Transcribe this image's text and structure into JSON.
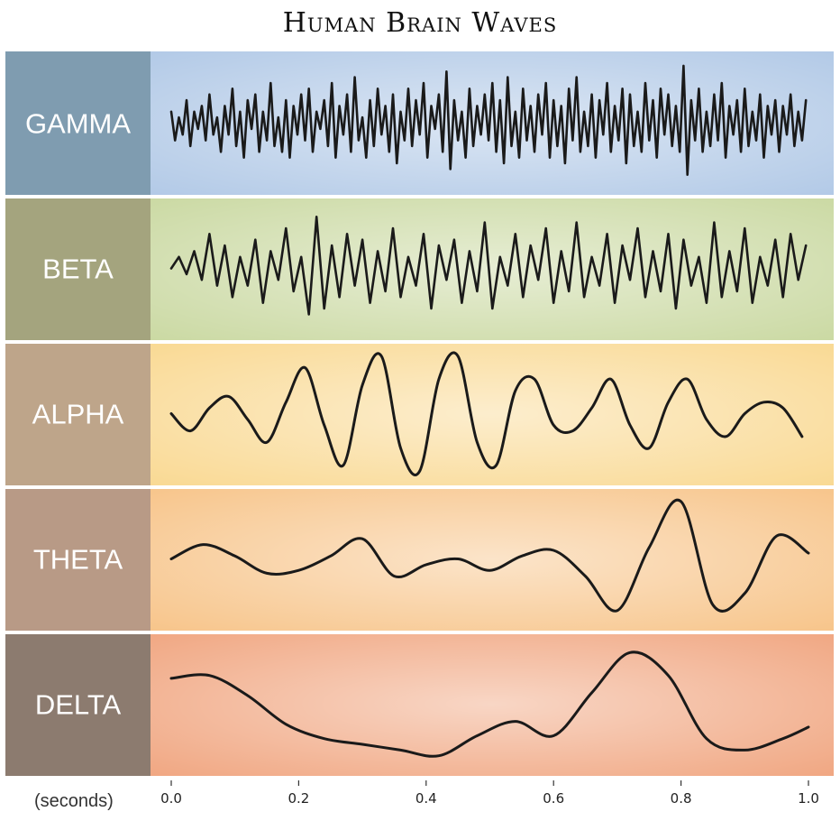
{
  "chart_data": {
    "type": "line",
    "title": "Human Brain Waves",
    "xlabel": "(seconds)",
    "ylabel": "",
    "xlim": [
      0.0,
      1.0
    ],
    "grid": false,
    "legend": "none",
    "x_ticks": [
      "0.0",
      "0.2",
      "0.4",
      "0.6",
      "0.8",
      "1.0"
    ],
    "series": [
      {
        "name": "GAMMA",
        "color": "#1a1a1a",
        "band_color": "#b0c8e6",
        "label_color": "#7f9cb0",
        "ylim": [
          -1,
          1
        ],
        "x": [
          0.0,
          0.006,
          0.012,
          0.018,
          0.024,
          0.03,
          0.036,
          0.042,
          0.048,
          0.054,
          0.06,
          0.066,
          0.072,
          0.078,
          0.084,
          0.09,
          0.096,
          0.102,
          0.108,
          0.114,
          0.12,
          0.126,
          0.132,
          0.138,
          0.144,
          0.15,
          0.156,
          0.162,
          0.168,
          0.174,
          0.18,
          0.186,
          0.192,
          0.198,
          0.204,
          0.21,
          0.216,
          0.222,
          0.228,
          0.234,
          0.24,
          0.246,
          0.252,
          0.258,
          0.264,
          0.27,
          0.276,
          0.282,
          0.288,
          0.294,
          0.3,
          0.306,
          0.312,
          0.318,
          0.324,
          0.33,
          0.336,
          0.342,
          0.348,
          0.354,
          0.36,
          0.366,
          0.372,
          0.378,
          0.384,
          0.39,
          0.396,
          0.402,
          0.408,
          0.414,
          0.42,
          0.426,
          0.432,
          0.438,
          0.444,
          0.45,
          0.456,
          0.462,
          0.468,
          0.474,
          0.48,
          0.486,
          0.492,
          0.498,
          0.504,
          0.51,
          0.516,
          0.522,
          0.528,
          0.534,
          0.54,
          0.546,
          0.552,
          0.558,
          0.564,
          0.57,
          0.576,
          0.582,
          0.588,
          0.594,
          0.6,
          0.606,
          0.612,
          0.618,
          0.624,
          0.63,
          0.636,
          0.642,
          0.648,
          0.654,
          0.66,
          0.666,
          0.672,
          0.678,
          0.684,
          0.69,
          0.696,
          0.702,
          0.708,
          0.714,
          0.72,
          0.726,
          0.732,
          0.738,
          0.744,
          0.75,
          0.756,
          0.762,
          0.768,
          0.774,
          0.78,
          0.786,
          0.792,
          0.798,
          0.804,
          0.81,
          0.816,
          0.822,
          0.828,
          0.834,
          0.84,
          0.846,
          0.852,
          0.858,
          0.864,
          0.87,
          0.876,
          0.882,
          0.888,
          0.894,
          0.9,
          0.906,
          0.912,
          0.918,
          0.924,
          0.93,
          0.936,
          0.942,
          0.948,
          0.954,
          0.96,
          0.966,
          0.972,
          0.978,
          0.984,
          0.99,
          0.996
        ],
        "values": [
          0.2,
          -0.3,
          0.1,
          -0.2,
          0.4,
          -0.4,
          0.2,
          -0.1,
          0.3,
          -0.3,
          0.5,
          -0.2,
          0.1,
          -0.5,
          0.3,
          -0.2,
          0.6,
          -0.4,
          0.2,
          -0.6,
          0.4,
          -0.1,
          0.5,
          -0.5,
          0.2,
          -0.3,
          0.7,
          -0.4,
          0.1,
          -0.5,
          0.4,
          -0.6,
          0.3,
          -0.2,
          0.5,
          -0.3,
          0.6,
          -0.5,
          0.2,
          -0.1,
          0.4,
          -0.4,
          0.7,
          -0.6,
          0.3,
          -0.2,
          0.5,
          -0.5,
          0.8,
          -0.3,
          0.1,
          -0.6,
          0.4,
          -0.4,
          0.6,
          -0.2,
          0.3,
          -0.5,
          0.5,
          -0.7,
          0.2,
          -0.3,
          0.6,
          -0.4,
          0.4,
          -0.2,
          0.7,
          -0.6,
          0.3,
          -0.1,
          0.5,
          -0.5,
          0.9,
          -0.8,
          0.4,
          -0.3,
          0.2,
          -0.6,
          0.6,
          -0.4,
          0.3,
          -0.2,
          0.5,
          -0.3,
          0.7,
          -0.5,
          0.4,
          -0.7,
          0.8,
          -0.4,
          0.2,
          -0.6,
          0.6,
          -0.3,
          0.3,
          -0.5,
          0.5,
          -0.2,
          0.7,
          -0.6,
          0.4,
          -0.4,
          0.3,
          -0.7,
          0.6,
          -0.3,
          0.8,
          -0.5,
          0.2,
          -0.4,
          0.5,
          -0.6,
          0.4,
          -0.2,
          0.7,
          -0.5,
          0.3,
          -0.3,
          0.6,
          -0.7,
          0.5,
          -0.4,
          0.2,
          -0.5,
          0.7,
          -0.3,
          0.4,
          -0.6,
          0.6,
          -0.2,
          0.5,
          -0.4,
          0.3,
          -0.5,
          1.0,
          -0.9,
          0.4,
          -0.3,
          0.6,
          -0.5,
          0.2,
          -0.4,
          0.5,
          -0.3,
          0.7,
          -0.6,
          0.3,
          -0.2,
          0.4,
          -0.5,
          0.6,
          -0.4,
          0.2,
          -0.3,
          0.5,
          -0.6,
          0.3,
          -0.2,
          0.4,
          -0.5,
          0.3,
          -0.2,
          0.5,
          -0.4,
          0.2,
          -0.3,
          0.4
        ]
      },
      {
        "name": "BETA",
        "color": "#1a1a1a",
        "band_color": "#c9d8a0",
        "label_color": "#a4a47e",
        "ylim": [
          -1,
          1
        ],
        "x": [
          0.0,
          0.012,
          0.024,
          0.036,
          0.048,
          0.06,
          0.072,
          0.084,
          0.096,
          0.108,
          0.12,
          0.132,
          0.144,
          0.156,
          0.168,
          0.18,
          0.192,
          0.204,
          0.216,
          0.228,
          0.24,
          0.252,
          0.264,
          0.276,
          0.288,
          0.3,
          0.312,
          0.324,
          0.336,
          0.348,
          0.36,
          0.372,
          0.384,
          0.396,
          0.408,
          0.42,
          0.432,
          0.444,
          0.456,
          0.468,
          0.48,
          0.492,
          0.504,
          0.516,
          0.528,
          0.54,
          0.552,
          0.564,
          0.576,
          0.588,
          0.6,
          0.612,
          0.624,
          0.636,
          0.648,
          0.66,
          0.672,
          0.684,
          0.696,
          0.708,
          0.72,
          0.732,
          0.744,
          0.756,
          0.768,
          0.78,
          0.792,
          0.804,
          0.816,
          0.828,
          0.84,
          0.852,
          0.864,
          0.876,
          0.888,
          0.9,
          0.912,
          0.924,
          0.936,
          0.948,
          0.96,
          0.972,
          0.984,
          0.996
        ],
        "values": [
          0.0,
          0.2,
          -0.1,
          0.3,
          -0.2,
          0.6,
          -0.3,
          0.4,
          -0.5,
          0.2,
          -0.3,
          0.5,
          -0.6,
          0.3,
          -0.2,
          0.7,
          -0.4,
          0.2,
          -0.8,
          0.9,
          -0.7,
          0.4,
          -0.5,
          0.6,
          -0.3,
          0.5,
          -0.6,
          0.3,
          -0.4,
          0.7,
          -0.5,
          0.2,
          -0.3,
          0.6,
          -0.7,
          0.4,
          -0.2,
          0.5,
          -0.6,
          0.3,
          -0.4,
          0.8,
          -0.7,
          0.2,
          -0.3,
          0.6,
          -0.5,
          0.4,
          -0.2,
          0.7,
          -0.6,
          0.3,
          -0.4,
          0.8,
          -0.5,
          0.2,
          -0.3,
          0.6,
          -0.6,
          0.4,
          -0.2,
          0.7,
          -0.5,
          0.3,
          -0.4,
          0.6,
          -0.7,
          0.5,
          -0.3,
          0.2,
          -0.6,
          0.8,
          -0.5,
          0.3,
          -0.4,
          0.7,
          -0.6,
          0.2,
          -0.3,
          0.5,
          -0.5,
          0.6,
          -0.2,
          0.4
        ]
      },
      {
        "name": "ALPHA",
        "color": "#1a1a1a",
        "band_color": "#f9d890",
        "label_color": "#bea58a",
        "ylim": [
          -1,
          1
        ],
        "x": [
          0.0,
          0.03,
          0.06,
          0.09,
          0.12,
          0.15,
          0.18,
          0.21,
          0.24,
          0.27,
          0.3,
          0.33,
          0.36,
          0.39,
          0.42,
          0.45,
          0.48,
          0.51,
          0.54,
          0.57,
          0.6,
          0.63,
          0.66,
          0.69,
          0.72,
          0.75,
          0.78,
          0.81,
          0.84,
          0.87,
          0.9,
          0.93,
          0.96,
          0.99
        ],
        "values": [
          0.0,
          -0.3,
          0.1,
          0.3,
          -0.1,
          -0.5,
          0.2,
          0.8,
          -0.2,
          -0.9,
          0.5,
          1.0,
          -0.6,
          -1.0,
          0.6,
          1.0,
          -0.5,
          -0.9,
          0.4,
          0.6,
          -0.2,
          -0.3,
          0.1,
          0.6,
          -0.2,
          -0.6,
          0.2,
          0.6,
          -0.1,
          -0.4,
          0.0,
          0.2,
          0.1,
          -0.4
        ]
      },
      {
        "name": "THETA",
        "color": "#1a1a1a",
        "band_color": "#f7c387",
        "label_color": "#b89a86",
        "ylim": [
          -1,
          1
        ],
        "x": [
          0.0,
          0.05,
          0.1,
          0.15,
          0.2,
          0.25,
          0.3,
          0.35,
          0.4,
          0.45,
          0.5,
          0.55,
          0.6,
          0.65,
          0.7,
          0.75,
          0.8,
          0.85,
          0.9,
          0.95,
          1.0
        ],
        "values": [
          0.0,
          0.25,
          0.05,
          -0.25,
          -0.2,
          0.05,
          0.35,
          -0.3,
          -0.1,
          0.0,
          -0.2,
          0.05,
          0.15,
          -0.3,
          -0.9,
          0.2,
          1.0,
          -0.8,
          -0.6,
          0.4,
          0.1
        ]
      },
      {
        "name": "DELTA",
        "color": "#1a1a1a",
        "band_color": "#f0a47e",
        "label_color": "#8c7b6f",
        "ylim": [
          -1,
          1
        ],
        "x": [
          0.0,
          0.06,
          0.12,
          0.18,
          0.24,
          0.3,
          0.36,
          0.42,
          0.48,
          0.54,
          0.6,
          0.66,
          0.72,
          0.78,
          0.84,
          0.9,
          0.96,
          1.0
        ],
        "values": [
          0.45,
          0.5,
          0.15,
          -0.35,
          -0.6,
          -0.7,
          -0.8,
          -0.9,
          -0.55,
          -0.3,
          -0.55,
          0.2,
          0.9,
          0.5,
          -0.6,
          -0.8,
          -0.6,
          -0.4
        ]
      }
    ]
  }
}
